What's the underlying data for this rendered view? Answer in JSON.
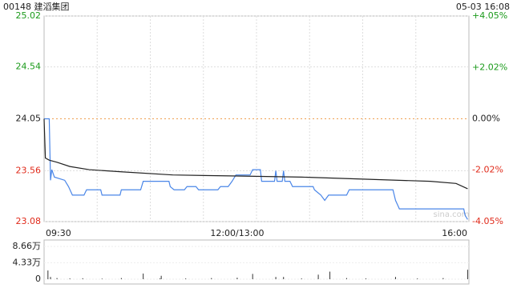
{
  "chart_data": [
    {
      "type": "line",
      "title": "00148 建滔集团",
      "timestamp": "05-03 16:08",
      "watermark": "sina.com",
      "xlim": [
        0,
        330
      ],
      "xticks": [
        {
          "value": 0,
          "label": "09:30"
        },
        {
          "value": 150,
          "label": "12:00/13:00"
        },
        {
          "value": 330,
          "label": "16:00"
        }
      ],
      "ylim": [
        23.08,
        25.02
      ],
      "yticks": [
        25.02,
        24.54,
        24.05,
        23.56,
        23.08
      ],
      "y2lim": [
        -4.05,
        4.05
      ],
      "y2ticks": [
        {
          "value": 4.05,
          "label": "+4.05%"
        },
        {
          "value": 2.02,
          "label": "+2.02%"
        },
        {
          "value": 0,
          "label": "0.00%"
        },
        {
          "value": -2.02,
          "label": "-2.02%"
        },
        {
          "value": -4.05,
          "label": "-4.05%"
        }
      ],
      "up_color": "#1a9a1a",
      "down_color": "#e02a1a",
      "flat_color": "#222222",
      "base_line_color": "#f0a050",
      "grid": true,
      "series": [
        {
          "color": "#4a86e8",
          "x": [
            0,
            4,
            5,
            6,
            8,
            16,
            19,
            22,
            31,
            33,
            44,
            45,
            59,
            60,
            75,
            77,
            97,
            98,
            101,
            109,
            111,
            118,
            120,
            135,
            137,
            143,
            146,
            149,
            160,
            162,
            168,
            169,
            179,
            180,
            181,
            185,
            186,
            187,
            191,
            193,
            209,
            210,
            215,
            218,
            221,
            235,
            237,
            271,
            273,
            276,
            326,
            327,
            329
          ],
          "values": [
            24.05,
            24.05,
            23.47,
            23.57,
            23.5,
            23.47,
            23.41,
            23.33,
            23.33,
            23.38,
            23.38,
            23.33,
            23.33,
            23.38,
            23.38,
            23.46,
            23.46,
            23.41,
            23.38,
            23.38,
            23.41,
            23.41,
            23.38,
            23.38,
            23.41,
            23.41,
            23.46,
            23.52,
            23.52,
            23.57,
            23.57,
            23.46,
            23.46,
            23.56,
            23.46,
            23.46,
            23.56,
            23.46,
            23.46,
            23.41,
            23.41,
            23.38,
            23.33,
            23.28,
            23.33,
            23.33,
            23.38,
            23.38,
            23.28,
            23.2,
            23.2,
            23.14,
            23.1
          ]
        },
        {
          "color": "#222222",
          "x": [
            0,
            1,
            4,
            10,
            20,
            35,
            60,
            100,
            150,
            200,
            250,
            300,
            320,
            329
          ],
          "values": [
            24.05,
            23.68,
            23.66,
            23.64,
            23.6,
            23.57,
            23.55,
            23.52,
            23.51,
            23.5,
            23.48,
            23.46,
            23.44,
            23.39
          ]
        }
      ]
    },
    {
      "type": "bar",
      "color": "#333333",
      "xlim": [
        0,
        330
      ],
      "ylim": [
        0,
        86600
      ],
      "yticks": [
        {
          "value": 86600,
          "label": "8.66万"
        },
        {
          "value": 43300,
          "label": "4.33万"
        },
        0
      ],
      "x": [
        3,
        5,
        10,
        20,
        30,
        45,
        60,
        77,
        90,
        91,
        110,
        130,
        150,
        162,
        180,
        186,
        200,
        213,
        222,
        235,
        250,
        273,
        290,
        310,
        329
      ],
      "values": [
        23000,
        6000,
        3000,
        2000,
        2500,
        1500,
        3000,
        15000,
        2000,
        9000,
        2000,
        3000,
        4000,
        14000,
        6000,
        6000,
        2000,
        12000,
        20000,
        3000,
        2000,
        6000,
        2000,
        3000,
        25000
      ]
    }
  ]
}
